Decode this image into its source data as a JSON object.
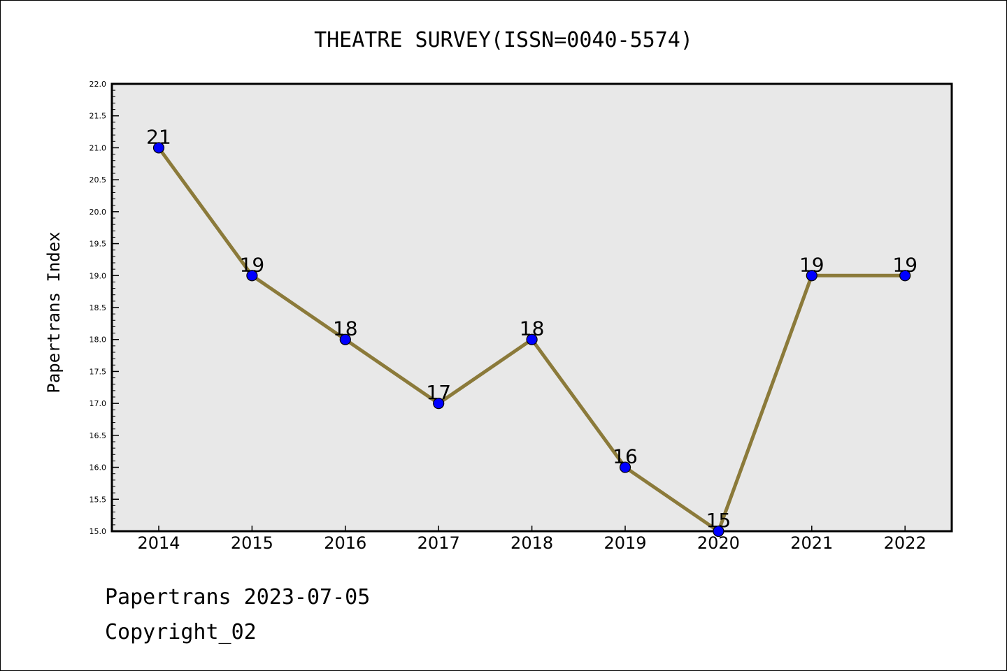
{
  "chart_data": {
    "type": "line",
    "title": "THEATRE SURVEY(ISSN=0040-5574)",
    "xlabel": "",
    "ylabel": "Papertrans Index",
    "categories": [
      "2014",
      "2015",
      "2016",
      "2017",
      "2018",
      "2019",
      "2020",
      "2021",
      "2022"
    ],
    "series": [
      {
        "values": [
          21,
          19,
          18,
          17,
          18,
          16,
          15,
          19,
          19
        ]
      }
    ],
    "data_labels": [
      "21",
      "19",
      "18",
      "17",
      "18",
      "16",
      "15",
      "19",
      "19"
    ],
    "ylim": [
      15.0,
      22.0
    ],
    "yticks": [
      "15.0",
      "15.5",
      "16.0",
      "16.5",
      "17.0",
      "17.5",
      "18.0",
      "18.5",
      "19.0",
      "19.5",
      "20.0",
      "20.5",
      "21.0",
      "21.5",
      "22.0"
    ],
    "grid": false,
    "legend": "none",
    "colors": {
      "line": "#8b7a3a",
      "marker": "#0000ff",
      "plot_bg": "#e8e8e8"
    }
  },
  "footer": {
    "line1": "Papertrans 2023-07-05",
    "line2": "Copyright_02"
  }
}
